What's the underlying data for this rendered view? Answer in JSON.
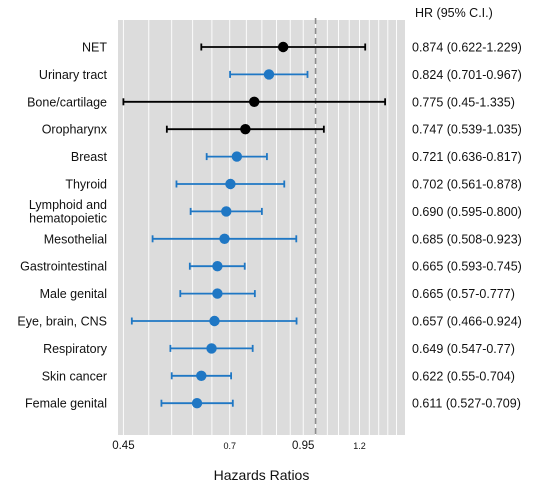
{
  "chart_data": {
    "type": "forest",
    "xlabel": "Hazards Ratios",
    "x_scale": "log",
    "xlim": [
      0.44,
      1.45
    ],
    "xticks": [
      {
        "value": 0.45,
        "label": "0.45"
      },
      {
        "value": 0.7,
        "label": "0.7"
      },
      {
        "value": 0.95,
        "label": "0.95"
      },
      {
        "value": 1.2,
        "label": "1.2"
      }
    ],
    "reference_line": 1.0,
    "grid": true,
    "table_header": "HR (95% C.I.)",
    "colors": {
      "significant": "#1f77c4",
      "not_significant": "#000000",
      "plot_bg": "#dcdcdc",
      "grid": "#ffffff",
      "ref_line": "#8c8c8c"
    },
    "rows": [
      {
        "label": "NET",
        "hr": 0.874,
        "lower": 0.622,
        "upper": 1.229,
        "hr_text": "0.874 (0.622-1.229)",
        "significant": false
      },
      {
        "label": "Urinary tract",
        "hr": 0.824,
        "lower": 0.701,
        "upper": 0.967,
        "hr_text": "0.824 (0.701-0.967)",
        "significant": true
      },
      {
        "label": "Bone/cartilage",
        "hr": 0.775,
        "lower": 0.45,
        "upper": 1.335,
        "hr_text": "0.775 (0.45-1.335)",
        "significant": false
      },
      {
        "label": "Oropharynx",
        "hr": 0.747,
        "lower": 0.539,
        "upper": 1.035,
        "hr_text": "0.747 (0.539-1.035)",
        "significant": false
      },
      {
        "label": "Breast",
        "hr": 0.721,
        "lower": 0.636,
        "upper": 0.817,
        "hr_text": "0.721 (0.636-0.817)",
        "significant": true
      },
      {
        "label": "Thyroid",
        "hr": 0.702,
        "lower": 0.561,
        "upper": 0.878,
        "hr_text": "0.702 (0.561-0.878)",
        "significant": true
      },
      {
        "label": "Lymphoid and hematopoietic",
        "label_lines": [
          "Lymphoid and",
          "hematopoietic"
        ],
        "hr": 0.69,
        "lower": 0.595,
        "upper": 0.8,
        "hr_text": "0.690 (0.595-0.800)",
        "significant": true
      },
      {
        "label": "Mesothelial",
        "hr": 0.685,
        "lower": 0.508,
        "upper": 0.923,
        "hr_text": "0.685 (0.508-0.923)",
        "significant": true
      },
      {
        "label": "Gastrointestinal",
        "hr": 0.665,
        "lower": 0.593,
        "upper": 0.745,
        "hr_text": "0.665 (0.593-0.745)",
        "significant": true
      },
      {
        "label": "Male genital",
        "hr": 0.665,
        "lower": 0.57,
        "upper": 0.777,
        "hr_text": "0.665 (0.57-0.777)",
        "significant": true
      },
      {
        "label": "Eye, brain, CNS",
        "hr": 0.657,
        "lower": 0.466,
        "upper": 0.924,
        "hr_text": "0.657 (0.466-0.924)",
        "significant": true
      },
      {
        "label": "Respiratory",
        "hr": 0.649,
        "lower": 0.547,
        "upper": 0.77,
        "hr_text": "0.649 (0.547-0.77)",
        "significant": true
      },
      {
        "label": "Skin cancer",
        "hr": 0.622,
        "lower": 0.55,
        "upper": 0.704,
        "hr_text": "0.622 (0.55-0.704)",
        "significant": true
      },
      {
        "label": "Female genital",
        "hr": 0.611,
        "lower": 0.527,
        "upper": 0.709,
        "hr_text": "0.611 (0.527-0.709)",
        "significant": true
      }
    ]
  }
}
